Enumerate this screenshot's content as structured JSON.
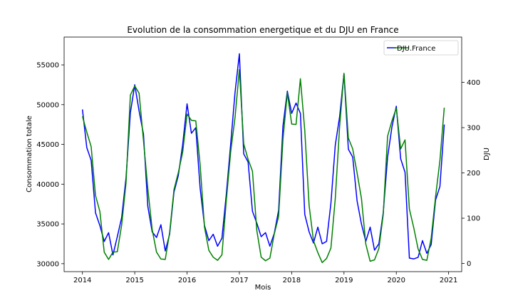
{
  "chart_data": {
    "type": "line",
    "title": "Evolution de la consommation energetique et du DJU en France",
    "xlabel": "Mois",
    "ylabel_left": "Consommation totale",
    "ylabel_right": "DJU",
    "x_ticks": [
      "2014",
      "2015",
      "2016",
      "2017",
      "2018",
      "2019",
      "2020",
      "2021"
    ],
    "y_left_ticks": [
      "30000",
      "35000",
      "40000",
      "45000",
      "50000",
      "55000"
    ],
    "y_right_ticks": [
      "0",
      "100",
      "200",
      "300",
      "400"
    ],
    "ylim_left": [
      29000,
      58500
    ],
    "ylim_right": [
      -18,
      500
    ],
    "xlim": [
      2013.65,
      2021.25
    ],
    "grid": false,
    "legend_position": "top-right",
    "legend": [
      {
        "label": "",
        "color": "#0000ff"
      },
      {
        "label": "DJU.France",
        "color": "#008000"
      }
    ],
    "x": [
      2014.0,
      2014.0833,
      2014.1667,
      2014.25,
      2014.3333,
      2014.4167,
      2014.5,
      2014.5833,
      2014.6667,
      2014.75,
      2014.8333,
      2014.9167,
      2015.0,
      2015.0833,
      2015.1667,
      2015.25,
      2015.3333,
      2015.4167,
      2015.5,
      2015.5833,
      2015.6667,
      2015.75,
      2015.8333,
      2015.9167,
      2016.0,
      2016.0833,
      2016.1667,
      2016.25,
      2016.3333,
      2016.4167,
      2016.5,
      2016.5833,
      2016.6667,
      2016.75,
      2016.8333,
      2016.9167,
      2017.0,
      2017.0833,
      2017.1667,
      2017.25,
      2017.3333,
      2017.4167,
      2017.5,
      2017.5833,
      2017.6667,
      2017.75,
      2017.8333,
      2017.9167,
      2018.0,
      2018.0833,
      2018.1667,
      2018.25,
      2018.3333,
      2018.4167,
      2018.5,
      2018.5833,
      2018.6667,
      2018.75,
      2018.8333,
      2018.9167,
      2019.0,
      2019.0833,
      2019.1667,
      2019.25,
      2019.3333,
      2019.4167,
      2019.5,
      2019.5833,
      2019.6667,
      2019.75,
      2019.8333,
      2019.9167,
      2020.0,
      2020.0833,
      2020.1667,
      2020.25,
      2020.3333,
      2020.4167,
      2020.5,
      2020.5833,
      2020.6667,
      2020.75,
      2020.8333,
      2020.9167
    ],
    "series": [
      {
        "name": "",
        "axis": "left",
        "color": "#0000ff",
        "values": [
          49400,
          44600,
          43000,
          36400,
          34800,
          32800,
          33900,
          31100,
          33400,
          35800,
          40800,
          49000,
          52500,
          49200,
          46300,
          37200,
          34000,
          33300,
          34900,
          31600,
          33700,
          39000,
          41100,
          45000,
          50100,
          46400,
          47100,
          39500,
          34800,
          32900,
          33700,
          32200,
          33200,
          38700,
          45000,
          51500,
          56400,
          43800,
          42800,
          36600,
          35100,
          33400,
          33900,
          32200,
          33800,
          36700,
          47300,
          51700,
          48900,
          50200,
          48900,
          36200,
          34000,
          32600,
          34600,
          32500,
          32800,
          37600,
          44900,
          48500,
          53900,
          44400,
          43400,
          37900,
          35000,
          32800,
          34600,
          31700,
          32500,
          36400,
          43400,
          47200,
          49800,
          43200,
          41500,
          30700,
          30600,
          30800,
          32900,
          31300,
          32400,
          38000,
          39700,
          47500
        ]
      },
      {
        "name": "DJU.France",
        "axis": "right",
        "color": "#008000",
        "values": [
          325,
          290,
          258,
          150,
          115,
          25,
          9,
          25,
          26,
          85,
          178,
          372,
          392,
          376,
          272,
          165,
          75,
          25,
          10,
          9,
          68,
          163,
          201,
          246,
          330,
          316,
          315,
          218,
          80,
          29,
          14,
          7,
          19,
          139,
          246,
          322,
          428,
          264,
          230,
          204,
          73,
          14,
          6,
          12,
          65,
          104,
          274,
          377,
          308,
          307,
          408,
          294,
          128,
          50,
          24,
          2,
          11,
          34,
          143,
          303,
          420,
          277,
          253,
          200,
          144,
          43,
          5,
          8,
          33,
          108,
          281,
          315,
          343,
          253,
          273,
          120,
          79,
          32,
          9,
          7,
          56,
          147,
          227,
          344
        ]
      }
    ]
  }
}
